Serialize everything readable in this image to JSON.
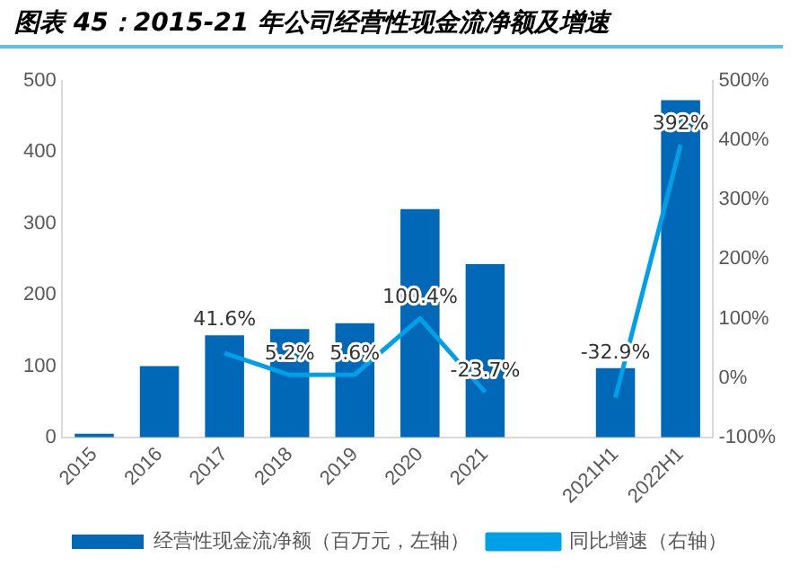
{
  "chart_data": {
    "type": "bar",
    "title": "图表 45：2015-21 年公司经营性现金流净额及增速",
    "categories": [
      "2015",
      "2016",
      "2017",
      "2018",
      "2019",
      "2020",
      "2021",
      null,
      "2021H1",
      "2022H1"
    ],
    "series": [
      {
        "name": "经营性现金流净额（百万元，左轴）",
        "color": "#0068b7",
        "values": [
          5,
          100,
          143,
          152,
          160,
          320,
          243,
          null,
          97,
          473
        ]
      },
      {
        "name": "同比增速（右轴）",
        "type": "line",
        "axis": "y2",
        "color": "#00a0e9",
        "marker": "none",
        "values": [
          null,
          null,
          41.6,
          5.2,
          5.6,
          100.4,
          -23.7,
          null,
          -32.9,
          392
        ],
        "value_labels": [
          null,
          null,
          "41.6%",
          "5.2%",
          "5.6%",
          "100.4%",
          "-23.7%",
          null,
          "-32.9%",
          "392%"
        ]
      }
    ],
    "ylim": [
      0,
      500
    ],
    "yticks": [
      0,
      100,
      200,
      300,
      400,
      500
    ],
    "y2lim": [
      -100,
      500
    ],
    "y2ticks": [
      {
        "value": -100,
        "label": "-100%"
      },
      {
        "value": 0,
        "label": "0%"
      },
      {
        "value": 100,
        "label": "100%"
      },
      {
        "value": 200,
        "label": "200%"
      },
      {
        "value": 300,
        "label": "300%"
      },
      {
        "value": 400,
        "label": "400%"
      },
      {
        "value": 500,
        "label": "500%"
      }
    ],
    "grid": false,
    "legend": "bottom"
  }
}
